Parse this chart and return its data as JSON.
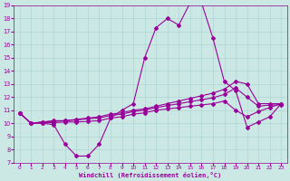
{
  "xlabel": "Windchill (Refroidissement éolien,°C)",
  "bg_color": "#cce8e4",
  "line_color": "#990099",
  "xlim": [
    -0.5,
    23.5
  ],
  "ylim": [
    7,
    19
  ],
  "xticks": [
    0,
    1,
    2,
    3,
    4,
    5,
    6,
    7,
    8,
    9,
    10,
    11,
    12,
    13,
    14,
    15,
    16,
    17,
    18,
    19,
    20,
    21,
    22,
    23
  ],
  "yticks": [
    7,
    8,
    9,
    10,
    11,
    12,
    13,
    14,
    15,
    16,
    17,
    18,
    19
  ],
  "series1_x": [
    0,
    1,
    2,
    3,
    4,
    5,
    6,
    7,
    8,
    9,
    10,
    11,
    12,
    13,
    14,
    15,
    16,
    17,
    18,
    19,
    20,
    21,
    22,
    23
  ],
  "series1_y": [
    10.8,
    10.0,
    10.0,
    9.9,
    8.4,
    7.5,
    7.5,
    8.4,
    10.4,
    11.0,
    11.5,
    15.0,
    17.3,
    18.0,
    17.5,
    19.2,
    19.2,
    16.5,
    13.2,
    12.5,
    9.7,
    10.1,
    10.5,
    11.5
  ],
  "series2_x": [
    0,
    1,
    2,
    3,
    4,
    5,
    6,
    7,
    8,
    9,
    10,
    11,
    12,
    13,
    14,
    15,
    16,
    17,
    18,
    19,
    20,
    21,
    22,
    23
  ],
  "series2_y": [
    10.8,
    10.0,
    10.1,
    10.2,
    10.2,
    10.3,
    10.4,
    10.5,
    10.7,
    10.8,
    11.0,
    11.1,
    11.3,
    11.5,
    11.7,
    11.9,
    12.1,
    12.3,
    12.6,
    13.2,
    13.0,
    11.5,
    11.5,
    11.5
  ],
  "series3_x": [
    0,
    1,
    2,
    3,
    4,
    5,
    6,
    7,
    8,
    9,
    10,
    11,
    12,
    13,
    14,
    15,
    16,
    17,
    18,
    19,
    20,
    21,
    22,
    23
  ],
  "series3_y": [
    10.8,
    10.0,
    10.1,
    10.15,
    10.2,
    10.25,
    10.35,
    10.4,
    10.6,
    10.7,
    10.9,
    11.0,
    11.2,
    11.35,
    11.5,
    11.65,
    11.8,
    11.95,
    12.2,
    12.7,
    12.0,
    11.3,
    11.4,
    11.4
  ],
  "series4_x": [
    0,
    1,
    2,
    3,
    4,
    5,
    6,
    7,
    8,
    9,
    10,
    11,
    12,
    13,
    14,
    15,
    16,
    17,
    18,
    19,
    20,
    21,
    22,
    23
  ],
  "series4_y": [
    10.8,
    10.0,
    10.05,
    10.05,
    10.1,
    10.1,
    10.15,
    10.2,
    10.4,
    10.5,
    10.7,
    10.8,
    11.0,
    11.1,
    11.2,
    11.3,
    11.4,
    11.5,
    11.7,
    11.0,
    10.5,
    10.9,
    11.2,
    11.5
  ],
  "grid_color": "#a8d4cf",
  "marker": "D",
  "markersize": 2.0,
  "linewidth": 0.8
}
